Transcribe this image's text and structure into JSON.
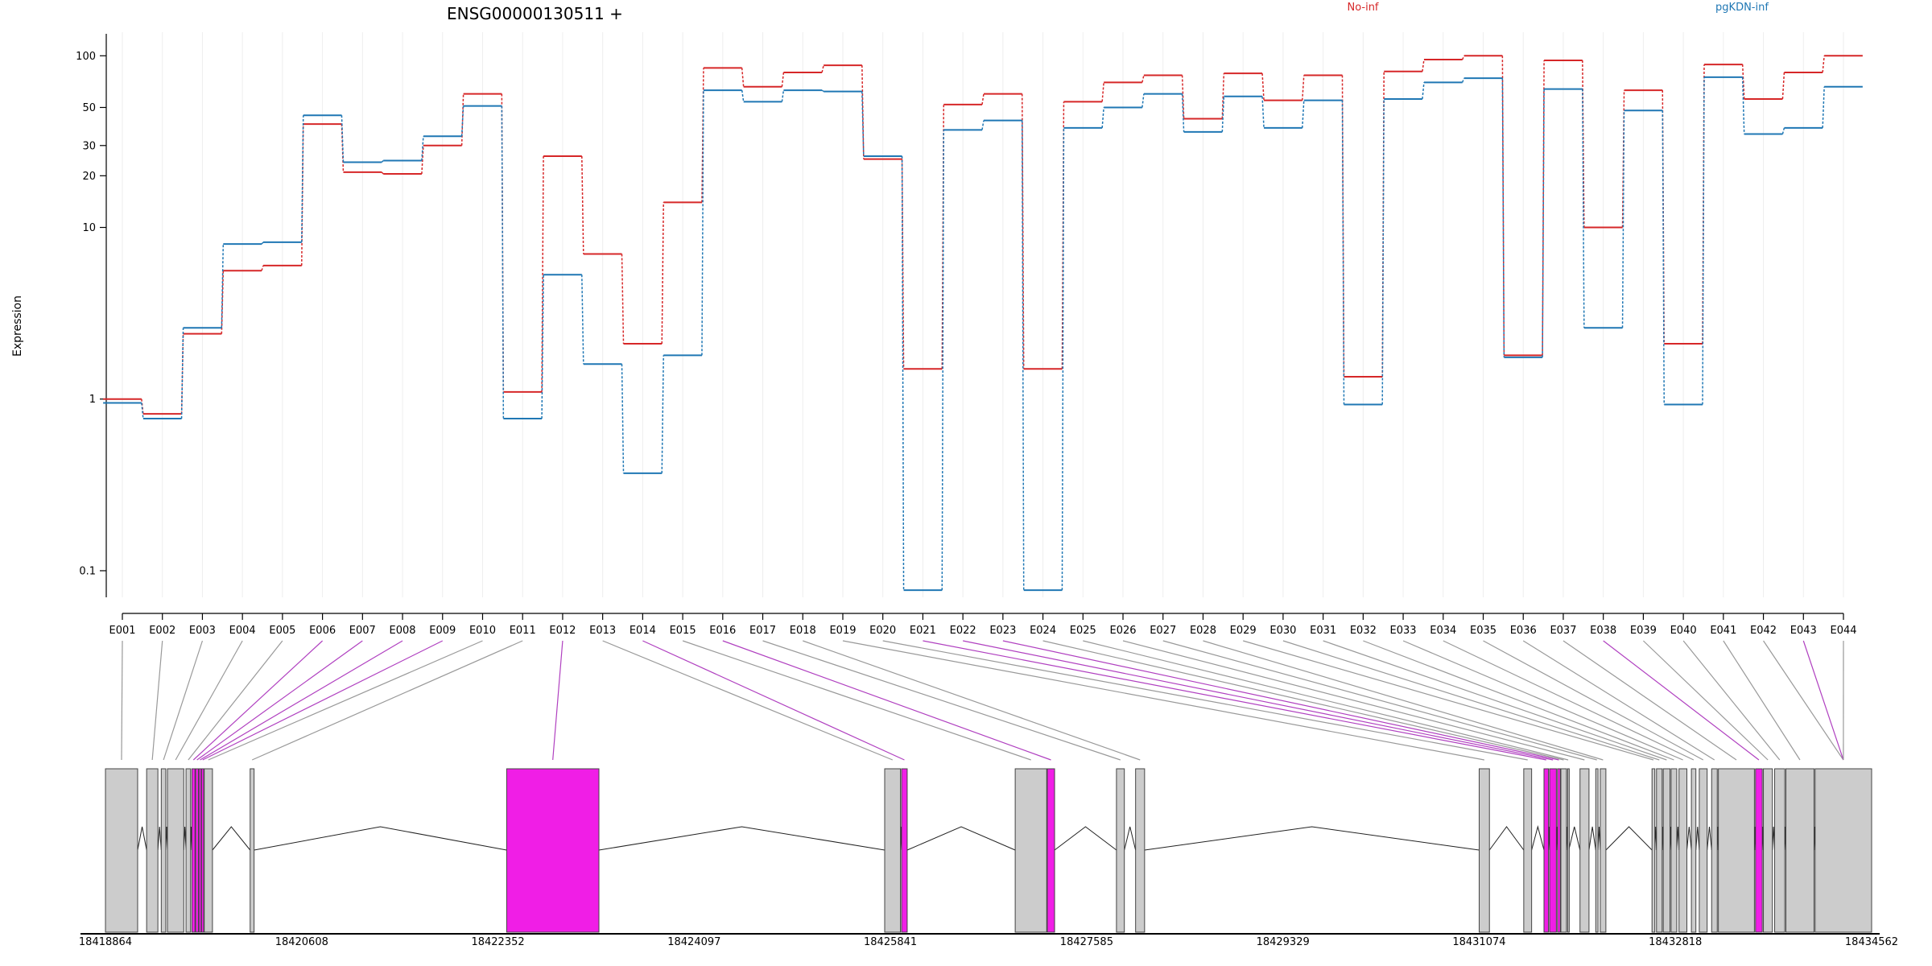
{
  "chart_data": {
    "type": "line",
    "title": "ENSG00000130511 +",
    "ylabel": "Expression",
    "xlabel": "",
    "y_scale": "log",
    "ylim": [
      0.07,
      130
    ],
    "y_ticks": [
      0.1,
      1,
      10,
      20,
      30,
      50,
      100
    ],
    "y_tick_labels": [
      "0.1",
      "1",
      "10",
      "20",
      "30",
      "50",
      "100"
    ],
    "categories": [
      "E001",
      "E002",
      "E003",
      "E004",
      "E005",
      "E006",
      "E007",
      "E008",
      "E009",
      "E010",
      "E011",
      "E012",
      "E013",
      "E014",
      "E015",
      "E016",
      "E017",
      "E018",
      "E019",
      "E020",
      "E021",
      "E022",
      "E023",
      "E024",
      "E025",
      "E026",
      "E027",
      "E028",
      "E029",
      "E030",
      "E031",
      "E032",
      "E033",
      "E034",
      "E035",
      "E036",
      "E037",
      "E038",
      "E039",
      "E040",
      "E041",
      "E042",
      "E043",
      "E044"
    ],
    "legend_position": "top-right",
    "series": [
      {
        "name": "No-inf",
        "color": "#d62728",
        "values": [
          1.0,
          0.82,
          2.4,
          5.6,
          6.0,
          40.0,
          21.0,
          20.5,
          30.0,
          60.0,
          1.1,
          26.0,
          7.0,
          2.1,
          14.0,
          85.0,
          66.0,
          80.0,
          88.0,
          25.0,
          1.5,
          52.0,
          60.0,
          1.5,
          54.0,
          70.0,
          77.0,
          43.0,
          79.0,
          55.0,
          77.0,
          1.35,
          81.0,
          95.0,
          100.0,
          1.8,
          94.0,
          10.0,
          63.0,
          2.1,
          89.0,
          56.0,
          80.0,
          100.0
        ]
      },
      {
        "name": "pgKDN-inf",
        "color": "#1f77b4",
        "values": [
          0.95,
          0.77,
          2.6,
          8.0,
          8.2,
          45.0,
          24.0,
          24.5,
          34.0,
          51.0,
          0.77,
          5.3,
          1.6,
          0.37,
          1.8,
          63.0,
          54.0,
          63.0,
          62.0,
          26.0,
          0.077,
          37.0,
          42.0,
          0.077,
          38.0,
          50.0,
          60.0,
          36.0,
          58.0,
          38.0,
          55.0,
          0.93,
          56.0,
          70.0,
          74.0,
          1.75,
          64.0,
          2.6,
          48.0,
          0.93,
          75.0,
          35.0,
          38.0,
          66.0
        ]
      }
    ],
    "gene_model": {
      "start": 18418864,
      "end": 18434562,
      "coordinate_ticks": [
        "18418864",
        "18420608",
        "18422352",
        "18424097",
        "18425841",
        "18427585",
        "18429329",
        "18431074",
        "18432818",
        "18434562"
      ],
      "highlight_color": "#f01ee6",
      "exon_color": "#cccccc",
      "highlighted_exons": [
        "E006",
        "E007",
        "E008",
        "E009",
        "E012",
        "E014",
        "E016",
        "E021",
        "E022",
        "E023",
        "E038",
        "E043"
      ]
    }
  }
}
